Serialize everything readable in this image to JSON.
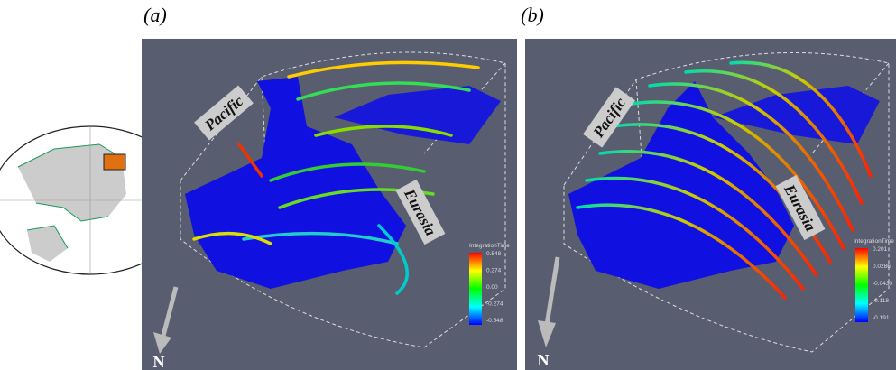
{
  "panels": [
    {
      "label": "(a)",
      "regions": [
        "Pacific",
        "Eurasia"
      ],
      "north": "N",
      "colorbar": {
        "title": "IntegrationTime",
        "ticks": [
          "0.548",
          "0.274",
          "0.00",
          "-0.274",
          "-0.548"
        ]
      }
    },
    {
      "label": "(b)",
      "regions": [
        "Pacific",
        "Eurasia"
      ],
      "north": "N",
      "colorbar": {
        "title": "IntegrationTime",
        "ticks": [
          "0.201",
          "0.0286",
          "-0.0430",
          "-0.118",
          "-0.191"
        ]
      }
    }
  ]
}
